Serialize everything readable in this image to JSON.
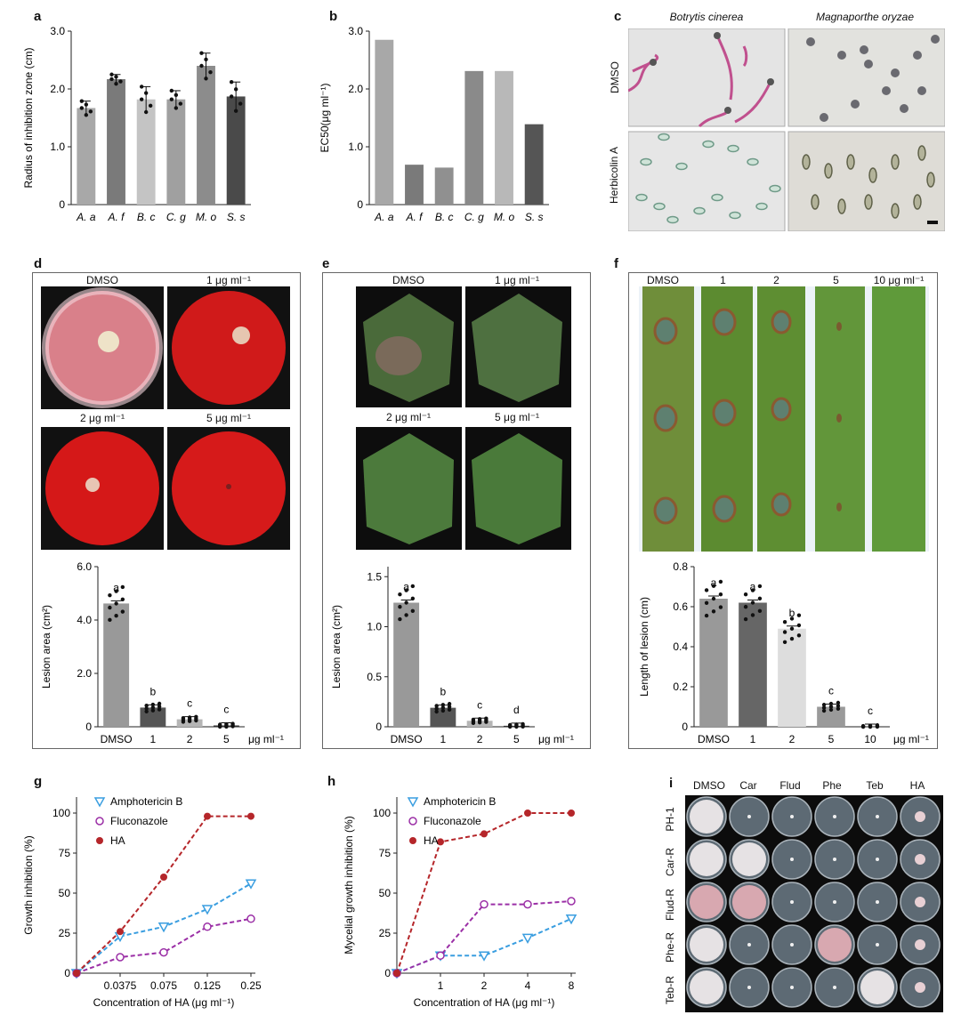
{
  "panels": {
    "a": "a",
    "b": "b",
    "c": "c",
    "d": "d",
    "e": "e",
    "f": "f",
    "g": "g",
    "h": "h",
    "i": "i"
  },
  "panel_c": {
    "col_titles": [
      "Botrytis cinerea",
      "Magnaporthe oryzae"
    ],
    "row_labels": [
      "DMSO",
      "Herbicolin A"
    ]
  },
  "panel_d": {
    "photo_labels": [
      "DMSO",
      "1 μg ml⁻¹",
      "2 μg ml⁻¹",
      "5 μg ml⁻¹"
    ]
  },
  "panel_e": {
    "photo_labels": [
      "DMSO",
      "1 μg ml⁻¹",
      "2 μg ml⁻¹",
      "5 μg ml⁻¹"
    ]
  },
  "panel_f": {
    "photo_labels": [
      "DMSO",
      "1",
      "2",
      "5",
      "10 μg ml⁻¹"
    ]
  },
  "panel_i": {
    "col_labels": [
      "DMSO",
      "Car",
      "Flud",
      "Phe",
      "Teb",
      "HA"
    ],
    "row_labels": [
      "PH-1",
      "Car-R",
      "Flud-R",
      "Phe-R",
      "Teb-R"
    ]
  },
  "chart_data": [
    {
      "id": "a",
      "type": "bar",
      "categories": [
        "A. a",
        "A. f",
        "B. c",
        "C. g",
        "M. o",
        "S. s"
      ],
      "values": [
        1.67,
        2.17,
        1.82,
        1.82,
        2.4,
        1.87
      ],
      "errors": [
        0.12,
        0.08,
        0.22,
        0.15,
        0.22,
        0.25
      ],
      "ylabel": "Radius of inhibition zone (cm)",
      "ylim": [
        0,
        3.0
      ],
      "yticks": [
        "0",
        "1.0",
        "2.0",
        "3.0"
      ],
      "colors": [
        "#a8a8a8",
        "#7a7a7a",
        "#c4c4c4",
        "#a0a0a0",
        "#8c8c8c",
        "#4a4a4a"
      ]
    },
    {
      "id": "b",
      "type": "bar",
      "categories": [
        "A. a",
        "A. f",
        "B. c",
        "C. g",
        "M. o",
        "S. s"
      ],
      "values": [
        2.85,
        0.69,
        0.64,
        2.31,
        2.31,
        1.39
      ],
      "ylabel": "EC50(μg ml⁻¹)",
      "ylim": [
        0,
        3.0
      ],
      "yticks": [
        "0",
        "1.0",
        "2.0",
        "3.0"
      ],
      "colors": [
        "#a8a8a8",
        "#7a7a7a",
        "#909090",
        "#8a8a8a",
        "#b8b8b8",
        "#555555"
      ]
    },
    {
      "id": "d",
      "type": "bar",
      "categories": [
        "DMSO",
        "1",
        "2",
        "5"
      ],
      "unit_label": "μg ml⁻¹",
      "values": [
        4.62,
        0.72,
        0.28,
        0.05
      ],
      "letters": [
        "a",
        "b",
        "c",
        "c"
      ],
      "ylabel": "Lesion area (cm²)",
      "ylim": [
        0,
        6.0
      ],
      "yticks": [
        "0",
        "2.0",
        "4.0",
        "6.0"
      ],
      "colors": [
        "#999999",
        "#555555",
        "#b5b5b5",
        "#333333"
      ]
    },
    {
      "id": "e",
      "type": "bar",
      "categories": [
        "DMSO",
        "1",
        "2",
        "5"
      ],
      "unit_label": "μg ml⁻¹",
      "values": [
        1.24,
        0.19,
        0.06,
        0.01
      ],
      "letters": [
        "a",
        "b",
        "c",
        "d"
      ],
      "ylabel": "Lesion area (cm²)",
      "ylim": [
        0,
        1.6
      ],
      "yticks": [
        "0",
        "0.5",
        "1.0",
        "1.5"
      ],
      "colors": [
        "#999999",
        "#555555",
        "#b5b5b5",
        "#333333"
      ]
    },
    {
      "id": "f",
      "type": "bar",
      "categories": [
        "DMSO",
        "1",
        "2",
        "5",
        "10"
      ],
      "unit_label": "μg ml⁻¹",
      "values": [
        0.64,
        0.62,
        0.49,
        0.1,
        0.0
      ],
      "letters": [
        "a",
        "a",
        "b",
        "c",
        "c"
      ],
      "ylabel": "Length of lesion (cm)",
      "ylim": [
        0,
        0.8
      ],
      "yticks": [
        "0",
        "0.2",
        "0.4",
        "0.6",
        "0.8"
      ],
      "colors": [
        "#999999",
        "#666666",
        "#dddddd",
        "#9a9a9a",
        "#555555"
      ]
    },
    {
      "id": "g",
      "type": "line",
      "x": [
        "0",
        "0.0375",
        "0.075",
        "0.125",
        "0.25"
      ],
      "xlabel": "Concentration of HA (μg ml⁻¹)",
      "ylabel": "Growth inhibition (%)",
      "ylim": [
        0,
        110
      ],
      "yticks": [
        "0",
        "25",
        "50",
        "75",
        "100"
      ],
      "series": [
        {
          "name": "Amphotericin B",
          "values": [
            0,
            23,
            29,
            40,
            56
          ],
          "color": "#3a9ee0",
          "marker": "triangle"
        },
        {
          "name": "Fluconazole",
          "values": [
            0,
            10,
            13,
            29,
            34
          ],
          "color": "#9b2fa6",
          "marker": "circle-open"
        },
        {
          "name": "HA",
          "values": [
            0,
            26,
            60,
            98,
            98
          ],
          "color": "#b5262a",
          "marker": "circle"
        }
      ]
    },
    {
      "id": "h",
      "type": "line",
      "x": [
        "0",
        "1",
        "2",
        "4",
        "8"
      ],
      "xlabel": "Concentration of HA (μg ml⁻¹)",
      "ylabel": "Mycelial growth inhibition (%)",
      "ylim": [
        0,
        110
      ],
      "yticks": [
        "0",
        "25",
        "50",
        "75",
        "100"
      ],
      "series": [
        {
          "name": "Amphotericin B",
          "values": [
            0,
            11,
            11,
            22,
            34
          ],
          "color": "#3a9ee0",
          "marker": "triangle"
        },
        {
          "name": "Fluconazole",
          "values": [
            0,
            11,
            43,
            43,
            45
          ],
          "color": "#9b2fa6",
          "marker": "circle-open"
        },
        {
          "name": "HA",
          "values": [
            0,
            82,
            87,
            100,
            100
          ],
          "color": "#b5262a",
          "marker": "circle"
        }
      ]
    }
  ]
}
